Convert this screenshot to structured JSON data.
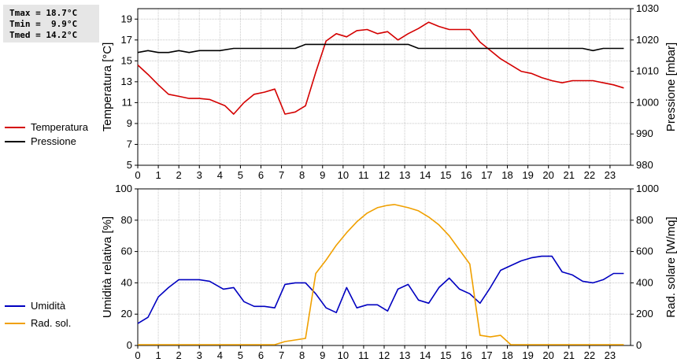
{
  "stats": {
    "tmax": "Tmax = 18.7°C",
    "tmin": "Tmin =  9.9°C",
    "tmed": "Tmed = 14.2°C"
  },
  "colors": {
    "temperatura": "#d40000",
    "pressione": "#000000",
    "umidita": "#0000c0",
    "radiazione": "#f0a000",
    "grid": "#c8c8c8"
  },
  "chart_data": [
    {
      "type": "line",
      "x_ticks": [
        0,
        1,
        2,
        3,
        4,
        5,
        6,
        7,
        8,
        9,
        10,
        11,
        12,
        13,
        14,
        15,
        16,
        17,
        18,
        19,
        20,
        21,
        22,
        23
      ],
      "xlim": [
        0,
        24
      ],
      "ylabel": "Temperatura [°C]",
      "ylim": [
        5,
        20
      ],
      "y_ticks": [
        5,
        7,
        9,
        11,
        13,
        15,
        17,
        19
      ],
      "y2label": "Pressione [mbar]",
      "y2lim": [
        980,
        1030
      ],
      "y2_ticks": [
        980,
        990,
        1000,
        1010,
        1020,
        1030
      ],
      "grid": true,
      "legend": "left",
      "series": [
        {
          "name": "Temperatura",
          "axis": "left",
          "points": [
            [
              0,
              14.6
            ],
            [
              0.5,
              13.7
            ],
            [
              1,
              12.7
            ],
            [
              1.5,
              11.8
            ],
            [
              2,
              11.6
            ],
            [
              2.5,
              11.4
            ],
            [
              3,
              11.4
            ],
            [
              3.5,
              11.3
            ],
            [
              4.25,
              10.7
            ],
            [
              4.67,
              9.9
            ],
            [
              5.17,
              11.0
            ],
            [
              5.67,
              11.8
            ],
            [
              6.17,
              12.0
            ],
            [
              6.67,
              12.3
            ],
            [
              7.17,
              9.9
            ],
            [
              7.67,
              10.1
            ],
            [
              8.17,
              10.7
            ],
            [
              8.67,
              13.9
            ],
            [
              9.17,
              16.9
            ],
            [
              9.67,
              17.6
            ],
            [
              10.17,
              17.3
            ],
            [
              10.67,
              17.9
            ],
            [
              11.17,
              18.0
            ],
            [
              11.67,
              17.6
            ],
            [
              12.17,
              17.8
            ],
            [
              12.67,
              17.0
            ],
            [
              13.17,
              17.6
            ],
            [
              13.67,
              18.1
            ],
            [
              14.17,
              18.7
            ],
            [
              14.67,
              18.3
            ],
            [
              15.17,
              18.0
            ],
            [
              15.67,
              18.0
            ],
            [
              16.17,
              18.0
            ],
            [
              16.67,
              16.8
            ],
            [
              17.17,
              16.0
            ],
            [
              17.67,
              15.2
            ],
            [
              18.17,
              14.6
            ],
            [
              18.67,
              14.0
            ],
            [
              19.17,
              13.8
            ],
            [
              19.67,
              13.4
            ],
            [
              20.17,
              13.1
            ],
            [
              20.67,
              12.9
            ],
            [
              21.17,
              13.1
            ],
            [
              21.67,
              13.1
            ],
            [
              22.17,
              13.1
            ],
            [
              22.67,
              12.9
            ],
            [
              23.17,
              12.7
            ],
            [
              23.67,
              12.4
            ]
          ]
        },
        {
          "name": "Pressione",
          "axis": "right",
          "points": [
            [
              0,
              1016
            ],
            [
              0.5,
              1016.6
            ],
            [
              1,
              1016
            ],
            [
              1.5,
              1016
            ],
            [
              2,
              1016.6
            ],
            [
              2.5,
              1016
            ],
            [
              3,
              1016.6
            ],
            [
              4,
              1016.6
            ],
            [
              4.67,
              1017.3
            ],
            [
              7.67,
              1017.3
            ],
            [
              8.17,
              1018.6
            ],
            [
              13.17,
              1018.6
            ],
            [
              13.67,
              1017.3
            ],
            [
              21.67,
              1017.3
            ],
            [
              22.17,
              1016.6
            ],
            [
              22.67,
              1017.3
            ],
            [
              23.67,
              1017.3
            ]
          ]
        }
      ]
    },
    {
      "type": "line",
      "x_ticks": [
        0,
        1,
        2,
        3,
        4,
        5,
        6,
        7,
        8,
        9,
        10,
        11,
        12,
        13,
        14,
        15,
        16,
        17,
        18,
        19,
        20,
        21,
        22,
        23
      ],
      "xlim": [
        0,
        24
      ],
      "ylabel": "Umidità relativa [%]",
      "ylim": [
        0,
        100
      ],
      "y_ticks": [
        0,
        20,
        40,
        60,
        80,
        100
      ],
      "y2label": "Rad. solare [W/mq]",
      "y2lim": [
        0,
        1000
      ],
      "y2_ticks": [
        0,
        200,
        400,
        600,
        800,
        1000
      ],
      "grid": true,
      "legend": "left",
      "series": [
        {
          "name": "Umidità",
          "axis": "left",
          "points": [
            [
              0,
              14
            ],
            [
              0.5,
              18
            ],
            [
              1,
              31
            ],
            [
              1.5,
              37
            ],
            [
              2,
              42
            ],
            [
              3,
              42
            ],
            [
              3.5,
              41
            ],
            [
              4.17,
              36
            ],
            [
              4.67,
              37
            ],
            [
              5.17,
              28
            ],
            [
              5.67,
              25
            ],
            [
              6.17,
              25
            ],
            [
              6.67,
              24
            ],
            [
              7.17,
              39
            ],
            [
              7.67,
              40
            ],
            [
              8.17,
              40
            ],
            [
              8.67,
              33
            ],
            [
              9.17,
              24
            ],
            [
              9.67,
              21
            ],
            [
              10.17,
              37
            ],
            [
              10.67,
              24
            ],
            [
              11.17,
              26
            ],
            [
              11.67,
              26
            ],
            [
              12.17,
              22
            ],
            [
              12.67,
              36
            ],
            [
              13.17,
              39
            ],
            [
              13.67,
              29
            ],
            [
              14.17,
              27
            ],
            [
              14.67,
              37
            ],
            [
              15.17,
              43
            ],
            [
              15.67,
              36
            ],
            [
              16.17,
              33
            ],
            [
              16.67,
              27
            ],
            [
              17.17,
              37
            ],
            [
              17.67,
              48
            ],
            [
              18.17,
              51
            ],
            [
              18.67,
              54
            ],
            [
              19.17,
              56
            ],
            [
              19.67,
              57
            ],
            [
              20.17,
              57
            ],
            [
              20.67,
              47
            ],
            [
              21.17,
              45
            ],
            [
              21.67,
              41
            ],
            [
              22.17,
              40
            ],
            [
              22.67,
              42
            ],
            [
              23.17,
              46
            ],
            [
              23.67,
              46
            ]
          ]
        },
        {
          "name": "Rad. sol.",
          "axis": "right",
          "points": [
            [
              0,
              5
            ],
            [
              6.67,
              5
            ],
            [
              7.17,
              25
            ],
            [
              7.67,
              35
            ],
            [
              8.17,
              45
            ],
            [
              8.67,
              460
            ],
            [
              9.17,
              545
            ],
            [
              9.67,
              640
            ],
            [
              10.17,
              720
            ],
            [
              10.67,
              790
            ],
            [
              11.17,
              845
            ],
            [
              11.67,
              880
            ],
            [
              12.17,
              895
            ],
            [
              12.5,
              900
            ],
            [
              12.67,
              895
            ],
            [
              13.17,
              880
            ],
            [
              13.67,
              860
            ],
            [
              14.17,
              820
            ],
            [
              14.67,
              770
            ],
            [
              15.17,
              700
            ],
            [
              15.67,
              610
            ],
            [
              16.17,
              520
            ],
            [
              16.67,
              65
            ],
            [
              17.17,
              55
            ],
            [
              17.67,
              65
            ],
            [
              18.17,
              5
            ],
            [
              23.67,
              5
            ]
          ]
        }
      ]
    }
  ]
}
